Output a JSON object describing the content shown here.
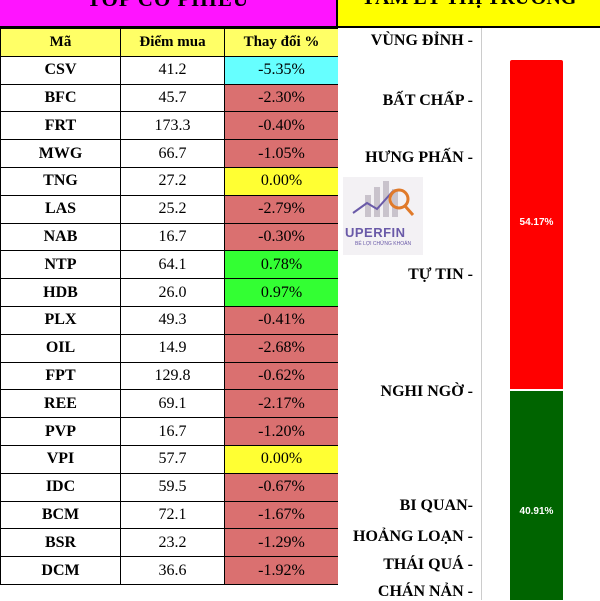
{
  "header": {
    "left_title": "TOP CỔ PHIẾU",
    "right_title": "TÂM LÝ THỊ TRƯỜNG"
  },
  "table": {
    "columns": [
      "Mã",
      "Điểm mua",
      "Thay đổi %"
    ],
    "rows": [
      {
        "symbol": "CSV",
        "buy": "41.2",
        "change": "-5.35%",
        "color": "blue"
      },
      {
        "symbol": "BFC",
        "buy": "45.7",
        "change": "-2.30%",
        "color": "red"
      },
      {
        "symbol": "FRT",
        "buy": "173.3",
        "change": "-0.40%",
        "color": "red"
      },
      {
        "symbol": "MWG",
        "buy": "66.7",
        "change": "-1.05%",
        "color": "red"
      },
      {
        "symbol": "TNG",
        "buy": "27.2",
        "change": "0.00%",
        "color": "yellow"
      },
      {
        "symbol": "LAS",
        "buy": "25.2",
        "change": "-2.79%",
        "color": "red"
      },
      {
        "symbol": "NAB",
        "buy": "16.7",
        "change": "-0.30%",
        "color": "red"
      },
      {
        "symbol": "NTP",
        "buy": "64.1",
        "change": "0.78%",
        "color": "green"
      },
      {
        "symbol": "HDB",
        "buy": "26.0",
        "change": "0.97%",
        "color": "green"
      },
      {
        "symbol": "PLX",
        "buy": "49.3",
        "change": "-0.41%",
        "color": "red"
      },
      {
        "symbol": "OIL",
        "buy": "14.9",
        "change": "-2.68%",
        "color": "red"
      },
      {
        "symbol": "FPT",
        "buy": "129.8",
        "change": "-0.62%",
        "color": "red"
      },
      {
        "symbol": "REE",
        "buy": "69.1",
        "change": "-2.17%",
        "color": "red"
      },
      {
        "symbol": "PVP",
        "buy": "16.7",
        "change": "-1.20%",
        "color": "red"
      },
      {
        "symbol": "VPI",
        "buy": "57.7",
        "change": "0.00%",
        "color": "yellow"
      },
      {
        "symbol": "IDC",
        "buy": "59.5",
        "change": "-0.67%",
        "color": "red"
      },
      {
        "symbol": "BCM",
        "buy": "72.1",
        "change": "-1.67%",
        "color": "red"
      },
      {
        "symbol": "BSR",
        "buy": "23.2",
        "change": "-1.29%",
        "color": "red"
      },
      {
        "symbol": "DCM",
        "buy": "36.6",
        "change": "-1.92%",
        "color": "red"
      }
    ]
  },
  "sentiment": {
    "levels": [
      {
        "label": "VÙNG ĐỈNH -"
      },
      {
        "label": "BẤT CHẤP -"
      },
      {
        "label": "HƯNG PHẤN -"
      },
      {
        "label": "TỰ TIN -"
      },
      {
        "label": "NGHI NGỜ -"
      },
      {
        "label": "BI QUAN-"
      },
      {
        "label": "HOẢNG LOẠN -"
      },
      {
        "label": "THÁI QUÁ -"
      },
      {
        "label": "CHÁN NẢN -"
      }
    ],
    "bar_top_percent": "54.17%",
    "bar_bottom_percent": "40.91%",
    "bar_top_color": "#ff0000",
    "bar_bottom_color": "#006400"
  },
  "logo": {
    "name": "UPERFIN",
    "tagline": "BÉ LỢI CHỨNG KHOÁN",
    "icon": "magnifier-chart-icon"
  },
  "colors": {
    "header_left": "#ff14ff",
    "header_right": "#ffff00",
    "cell_blue": "#66ffff",
    "cell_red": "#da7070",
    "cell_yellow": "#ffff33",
    "cell_green": "#33ff33"
  }
}
